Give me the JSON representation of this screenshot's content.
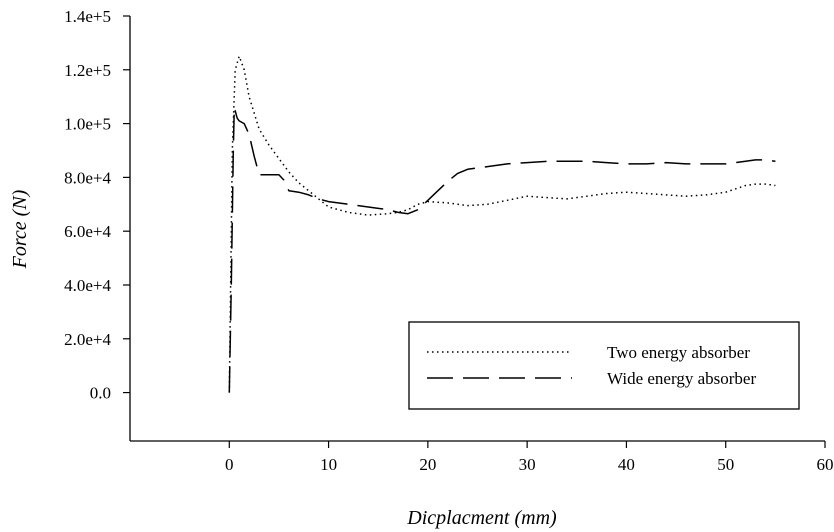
{
  "chart_data": {
    "type": "line",
    "xlabel": "Dicplacment (mm)",
    "ylabel": "Force (N)",
    "xlim": [
      -10,
      60
    ],
    "ylim": [
      -18000,
      140000
    ],
    "xticks": [
      0,
      10,
      20,
      30,
      40,
      50,
      60
    ],
    "xtick_labels": [
      "0",
      "10",
      "20",
      "30",
      "40",
      "50",
      "60"
    ],
    "yticks": [
      0,
      20000,
      40000,
      60000,
      80000,
      100000,
      120000,
      140000
    ],
    "ytick_labels": [
      "0.0",
      "2.0e+4",
      "4.0e+4",
      "6.0e+4",
      "8.0e+4",
      "1.0e+5",
      "1.2e+5",
      "1.4e+5"
    ],
    "grid": false,
    "legend_position": "lower-right",
    "series": [
      {
        "name": "Two energy absorber",
        "style": "dotted",
        "color": "#000000",
        "x": [
          0,
          0.3,
          0.6,
          1.0,
          1.5,
          2.0,
          3.0,
          4.0,
          5.0,
          6.0,
          7.0,
          8.0,
          9.0,
          10.0,
          12.0,
          14.0,
          16.0,
          17.0,
          18.0,
          19.0,
          20.0,
          22.0,
          24.0,
          26.0,
          28.0,
          30.0,
          32.0,
          34.0,
          36.0,
          38.0,
          40.0,
          42.0,
          44.0,
          46.0,
          48.0,
          50.0,
          52.0,
          53.0,
          54.0,
          55.0
        ],
        "y": [
          0,
          90000,
          120000,
          125000,
          120000,
          110000,
          98000,
          92000,
          87000,
          82000,
          78000,
          75000,
          72000,
          69000,
          67000,
          66000,
          66500,
          67000,
          68000,
          70000,
          71000,
          70500,
          69500,
          70000,
          71500,
          73000,
          72500,
          72000,
          73000,
          74000,
          74500,
          74000,
          73500,
          73000,
          73500,
          74500,
          77000,
          77500,
          77500,
          77000
        ]
      },
      {
        "name": "Wide energy absorber",
        "style": "dashed",
        "color": "#000000",
        "x": [
          0,
          0.2,
          0.4,
          0.5,
          0.8,
          1.0,
          1.5,
          2.0,
          2.5,
          3.0,
          3.5,
          4.0,
          4.5,
          5.0,
          5.5,
          6.0,
          7.0,
          8.0,
          9.0,
          10.0,
          12.0,
          14.0,
          16.0,
          17.0,
          18.0,
          19.0,
          20.0,
          21.0,
          22.0,
          23.0,
          24.0,
          26.0,
          28.0,
          30.0,
          32.0,
          34.0,
          36.0,
          38.0,
          40.0,
          42.0,
          44.0,
          46.0,
          48.0,
          50.0,
          52.0,
          53.0,
          54.0,
          55.0
        ],
        "y": [
          0,
          40000,
          90000,
          106000,
          102000,
          101000,
          100000,
          96000,
          88000,
          81000,
          81000,
          81000,
          81000,
          81000,
          79000,
          75000,
          74500,
          73500,
          72000,
          71000,
          70000,
          69000,
          68000,
          67000,
          66500,
          68000,
          71500,
          75000,
          78500,
          81500,
          83000,
          84000,
          85000,
          85500,
          86000,
          86000,
          86000,
          85500,
          85000,
          85000,
          85500,
          85000,
          85000,
          85000,
          86000,
          86500,
          86500,
          86000
        ]
      }
    ]
  }
}
